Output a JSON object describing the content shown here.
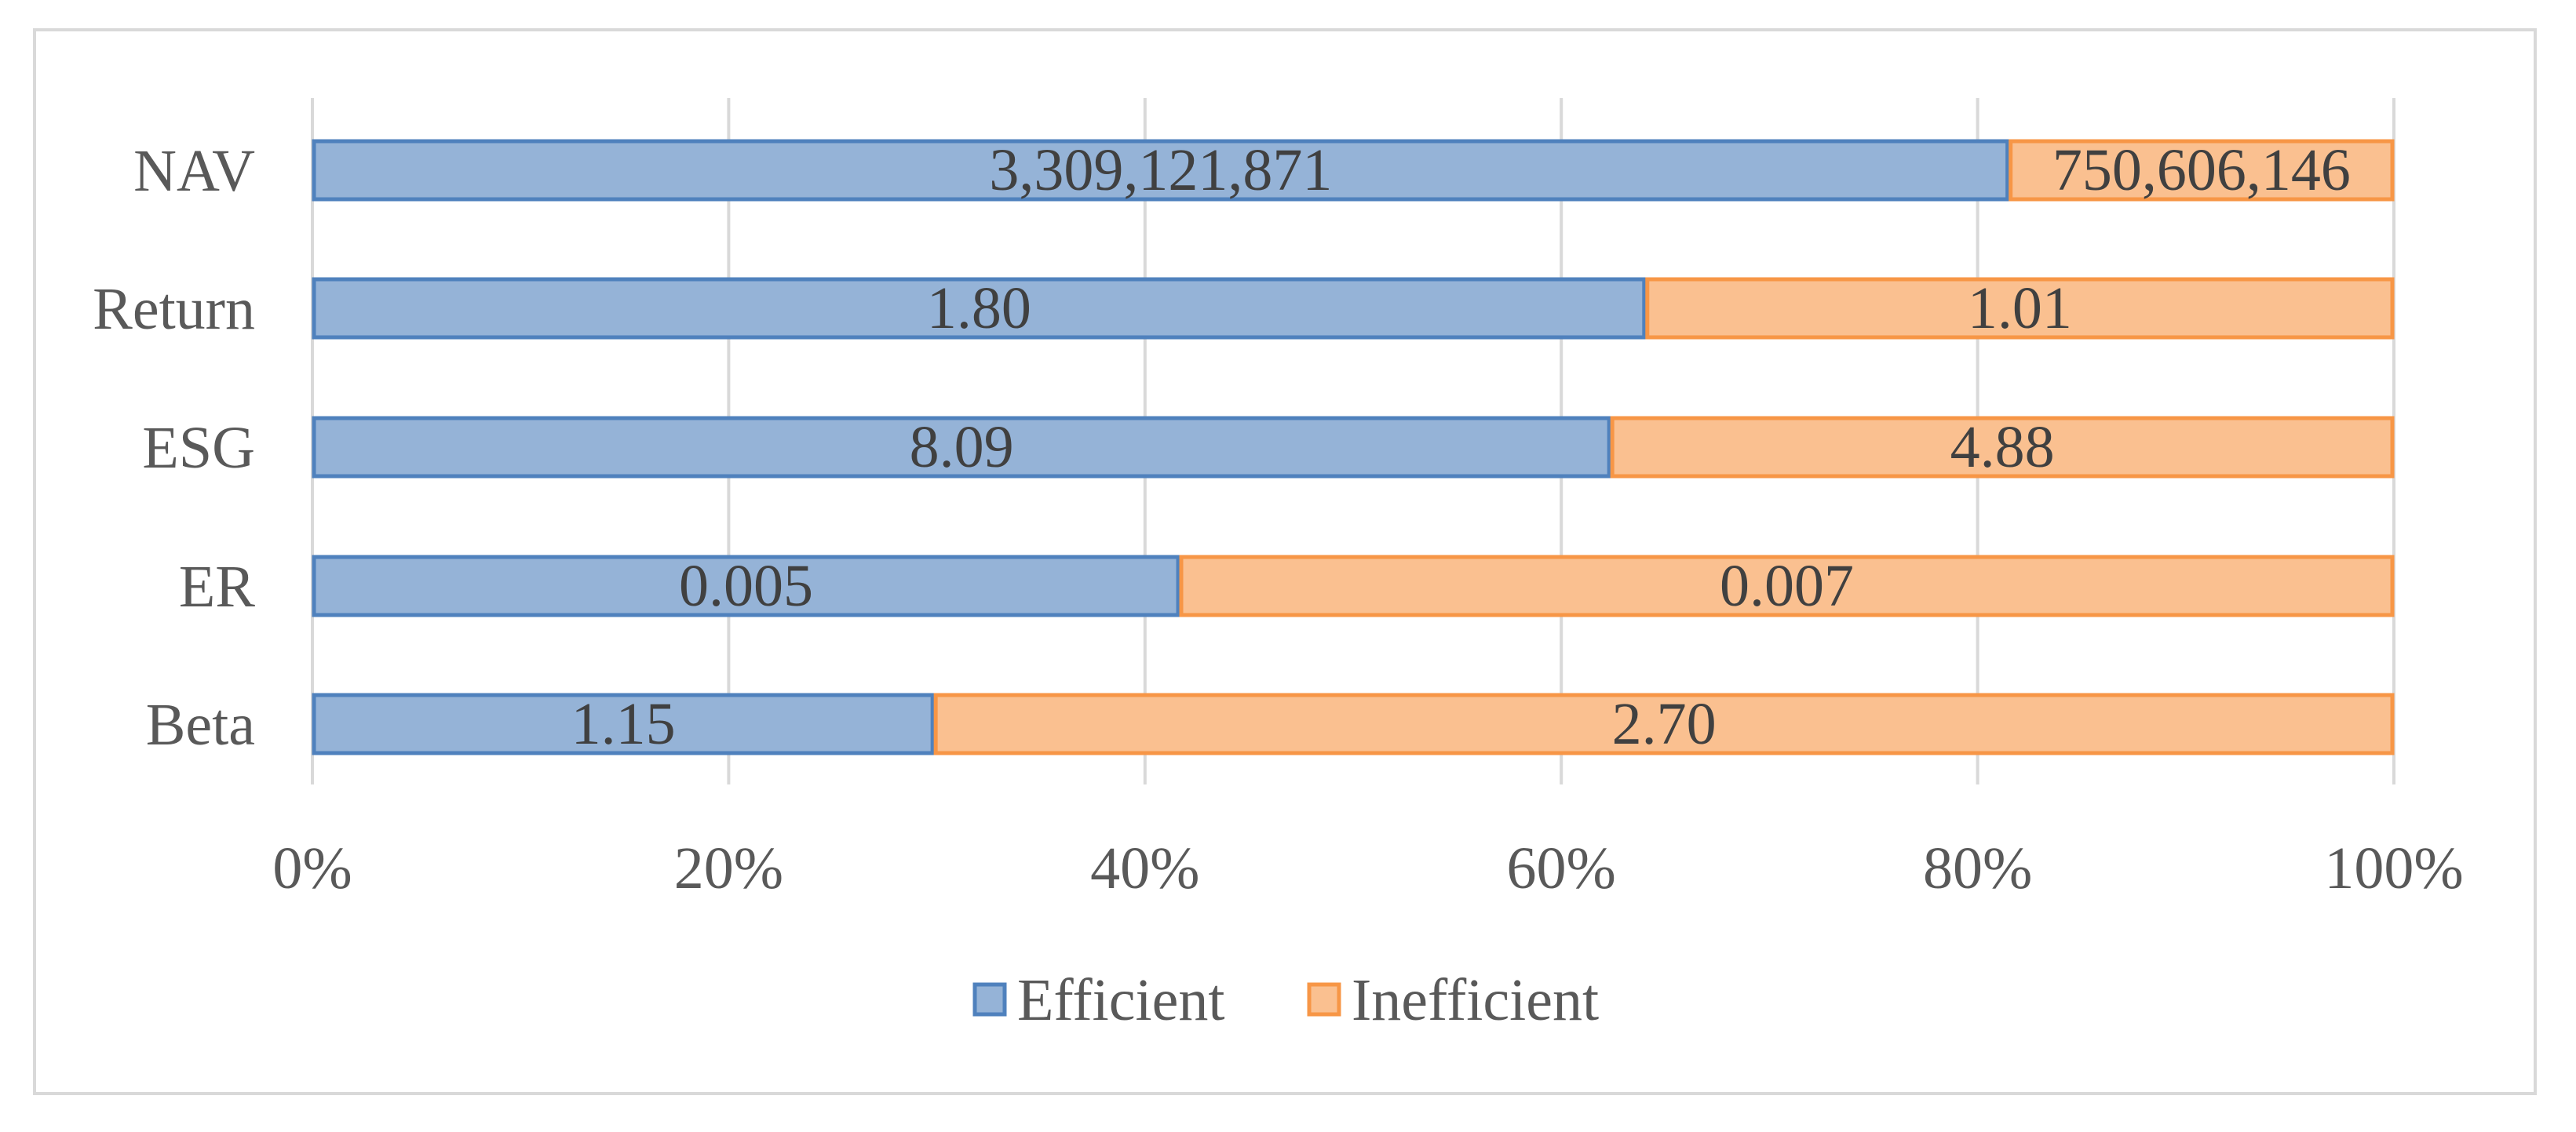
{
  "chart_data": {
    "type": "bar",
    "orientation": "horizontal",
    "stacking": "percent",
    "title": "",
    "xlabel": "",
    "ylabel": "",
    "xlim": [
      0,
      100
    ],
    "x_ticks": [
      "0%",
      "20%",
      "40%",
      "60%",
      "80%",
      "100%"
    ],
    "grid": "vertical",
    "legend_position": "bottom",
    "categories": [
      "NAV",
      "Return",
      "ESG",
      "ER",
      "Beta"
    ],
    "series": [
      {
        "name": "Efficient",
        "color": "#95b3d7",
        "edge_color": "#4f81bd",
        "values": [
          3309121871,
          1.8,
          8.09,
          0.005,
          1.15
        ],
        "labels": [
          "3,309,121,871",
          "1.80",
          "8.09",
          "0.005",
          "1.15"
        ]
      },
      {
        "name": "Inefficient",
        "color": "#fac090",
        "edge_color": "#f79646",
        "values": [
          750606146,
          1.01,
          4.88,
          0.007,
          2.7
        ],
        "labels": [
          "750,606,146",
          "1.01",
          "4.88",
          "0.007",
          "2.70"
        ]
      }
    ]
  }
}
